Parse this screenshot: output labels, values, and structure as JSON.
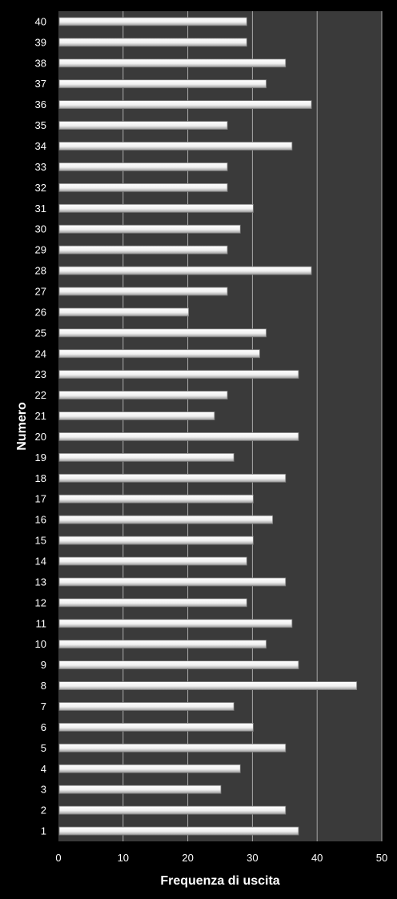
{
  "chart_data": {
    "type": "bar",
    "orientation": "horizontal",
    "xlabel": "Frequenza di uscita",
    "ylabel": "Numero",
    "xlim": [
      0,
      50
    ],
    "xticks": [
      0,
      10,
      20,
      30,
      40,
      50
    ],
    "grid": true,
    "legend": "none",
    "categories": [
      "1",
      "2",
      "3",
      "4",
      "5",
      "6",
      "7",
      "8",
      "9",
      "10",
      "11",
      "12",
      "13",
      "14",
      "15",
      "16",
      "17",
      "18",
      "19",
      "20",
      "21",
      "22",
      "23",
      "24",
      "25",
      "26",
      "27",
      "28",
      "29",
      "30",
      "31",
      "32",
      "33",
      "34",
      "35",
      "36",
      "37",
      "38",
      "39",
      "40"
    ],
    "values": [
      37,
      35,
      25,
      28,
      35,
      30,
      27,
      46,
      37,
      32,
      36,
      29,
      35,
      29,
      30,
      33,
      30,
      35,
      27,
      37,
      24,
      26,
      37,
      31,
      32,
      20,
      26,
      39,
      26,
      28,
      30,
      26,
      26,
      36,
      26,
      39,
      32,
      35,
      29,
      29
    ]
  },
  "colors": {
    "background": "#000000",
    "plot_area": "#3a3a3a",
    "gridline": "#a6a6a6",
    "bar_fill": "#f2f2f2",
    "text": "#ffffff"
  }
}
